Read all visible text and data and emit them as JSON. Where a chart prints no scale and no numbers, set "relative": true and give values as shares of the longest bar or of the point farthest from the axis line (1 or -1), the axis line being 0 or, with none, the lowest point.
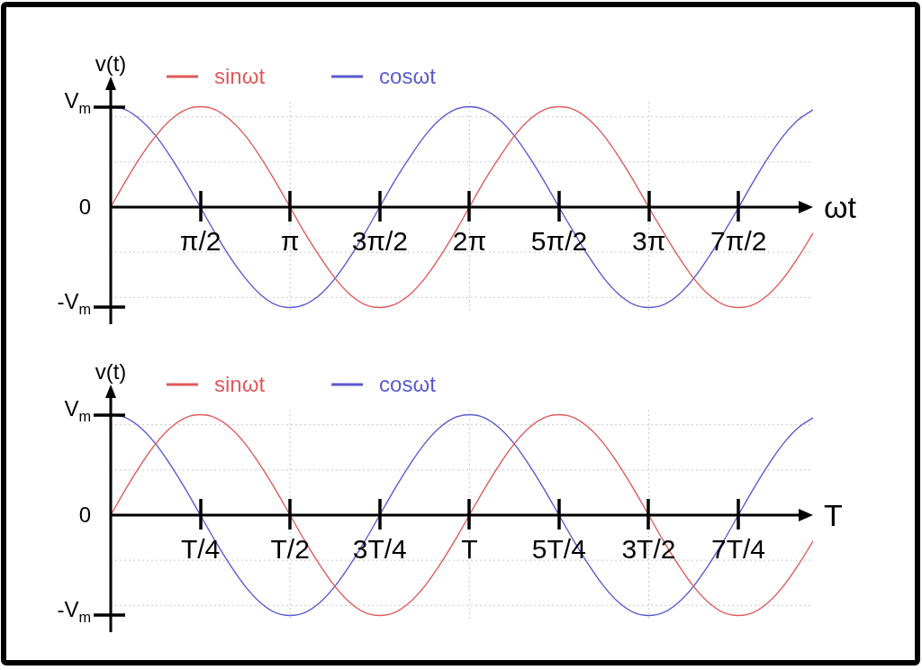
{
  "chart_data": [
    {
      "type": "line",
      "relative": true,
      "xlabel": "ωt",
      "ylabel": "v(t)",
      "legend": "top left",
      "x": [
        0,
        0.26,
        0.52,
        0.79,
        1.05,
        1.31,
        1.57,
        1.83,
        2.09,
        2.36,
        2.62,
        2.88,
        3.14,
        3.4,
        3.67,
        3.93,
        4.19,
        4.45,
        4.71,
        4.97,
        5.24,
        5.5,
        5.76,
        6.02,
        6.28,
        6.54,
        6.81,
        7.07,
        7.33,
        7.59,
        7.85,
        8.12,
        8.38,
        8.64,
        8.9,
        9.16,
        9.42,
        9.69,
        9.95,
        10.21,
        10.47,
        10.73,
        11,
        11.26,
        11.52,
        11.78,
        12.04,
        12.3
      ],
      "series": [
        {
          "name": "sinωt",
          "color": "#e05a5a",
          "values": [
            0,
            0.26,
            0.5,
            0.71,
            0.87,
            0.97,
            1,
            0.97,
            0.87,
            0.71,
            0.5,
            0.26,
            0,
            -0.26,
            -0.5,
            -0.71,
            -0.87,
            -0.97,
            -1,
            -0.97,
            -0.87,
            -0.71,
            -0.5,
            -0.26,
            0,
            0.26,
            0.5,
            0.71,
            0.87,
            0.97,
            1,
            0.97,
            0.87,
            0.71,
            0.5,
            0.26,
            0,
            -0.26,
            -0.5,
            -0.71,
            -0.87,
            -0.97,
            -1,
            -0.97,
            -0.87,
            -0.71,
            -0.5,
            -0.26
          ]
        },
        {
          "name": "cosωt",
          "color": "#5a5ad0",
          "values": [
            1,
            0.97,
            0.87,
            0.71,
            0.5,
            0.26,
            0,
            -0.26,
            -0.5,
            -0.71,
            -0.87,
            -0.97,
            -1,
            -0.97,
            -0.87,
            -0.71,
            -0.5,
            -0.26,
            0,
            0.26,
            0.5,
            0.71,
            0.87,
            0.97,
            1,
            0.97,
            0.87,
            0.71,
            0.5,
            0.26,
            0,
            -0.26,
            -0.5,
            -0.71,
            -0.87,
            -0.97,
            -1,
            -0.97,
            -0.87,
            -0.71,
            -0.5,
            -0.26,
            0,
            0.26,
            0.5,
            0.71,
            0.87,
            0.97
          ]
        }
      ],
      "xlim": [
        0,
        12.3
      ],
      "xticks": [
        {
          "value": 1.5708,
          "label": "π/2"
        },
        {
          "value": 3.1416,
          "label": "π"
        },
        {
          "value": 4.7124,
          "label": "3π/2"
        },
        {
          "value": 6.2832,
          "label": "2π"
        },
        {
          "value": 7.854,
          "label": "5π/2"
        },
        {
          "value": 9.4248,
          "label": "3π"
        },
        {
          "value": 10.9956,
          "label": "7π/2"
        }
      ],
      "annotations": [
        "V$_{m}$",
        "0",
        "-V$_{m}$"
      ],
      "ref_lines": [
        {
          "axis": "x",
          "value": 3.1416,
          "color": "#c8c8c8",
          "line_style": "dotted"
        },
        {
          "axis": "x",
          "value": 6.2832,
          "color": "#c8c8c8",
          "line_style": "dotted"
        },
        {
          "axis": "x",
          "value": 9.4248,
          "color": "#c8c8c8",
          "line_style": "dotted"
        },
        {
          "axis": "y",
          "value": 0.9,
          "color": "#c8c8c8",
          "line_style": "dotted"
        },
        {
          "axis": "y",
          "value": 0.45,
          "color": "#c8c8c8",
          "line_style": "dotted"
        },
        {
          "axis": "y",
          "value": -0.45,
          "color": "#c8c8c8",
          "line_style": "dotted"
        },
        {
          "axis": "y",
          "value": -0.9,
          "color": "#c8c8c8",
          "line_style": "dotted"
        }
      ]
    },
    {
      "type": "line",
      "relative": true,
      "xlabel": "T",
      "ylabel": "v(t)",
      "legend": "top left",
      "categories": [
        null,
        null,
        null,
        null,
        null,
        null,
        "T/4",
        null,
        null,
        null,
        null,
        null,
        "T/2",
        null,
        null,
        null,
        null,
        null,
        "3T/4",
        null,
        null,
        null,
        null,
        null,
        "T",
        null,
        null,
        null,
        null,
        null,
        "5T/4",
        null,
        null,
        null,
        null,
        null,
        "3T/2",
        null,
        null,
        null,
        null,
        null,
        "7T/4",
        null,
        null,
        null,
        null,
        null
      ],
      "series": [
        {
          "name": "sinωt",
          "color": "#e05a5a",
          "values": [
            0,
            0.26,
            0.5,
            0.71,
            0.87,
            0.97,
            1,
            0.97,
            0.87,
            0.71,
            0.5,
            0.26,
            0,
            -0.26,
            -0.5,
            -0.71,
            -0.87,
            -0.97,
            -1,
            -0.97,
            -0.87,
            -0.71,
            -0.5,
            -0.26,
            0,
            0.26,
            0.5,
            0.71,
            0.87,
            0.97,
            1,
            0.97,
            0.87,
            0.71,
            0.5,
            0.26,
            0,
            -0.26,
            -0.5,
            -0.71,
            -0.87,
            -0.97,
            -1,
            -0.97,
            -0.87,
            -0.71,
            -0.5,
            -0.26
          ]
        },
        {
          "name": "cosωt",
          "color": "#5a5ad0",
          "values": [
            1,
            0.97,
            0.87,
            0.71,
            0.5,
            0.26,
            0,
            -0.26,
            -0.5,
            -0.71,
            -0.87,
            -0.97,
            -1,
            -0.97,
            -0.87,
            -0.71,
            -0.5,
            -0.26,
            0,
            0.26,
            0.5,
            0.71,
            0.87,
            0.97,
            1,
            0.97,
            0.87,
            0.71,
            0.5,
            0.26,
            0,
            -0.26,
            -0.5,
            -0.71,
            -0.87,
            -0.97,
            -1,
            -0.97,
            -0.87,
            -0.71,
            -0.5,
            -0.26,
            0,
            0.26,
            0.5,
            0.71,
            0.87,
            0.97
          ]
        }
      ],
      "annotations": [
        "V$_{m}$",
        "0",
        "-V$_{m}$"
      ],
      "ref_lines": [
        {
          "axis": "y",
          "value": 0.9,
          "color": "#c8c8c8",
          "line_style": "dotted"
        },
        {
          "axis": "y",
          "value": 0.45,
          "color": "#c8c8c8",
          "line_style": "dotted"
        },
        {
          "axis": "y",
          "value": -0.45,
          "color": "#c8c8c8",
          "line_style": "dotted"
        },
        {
          "axis": "y",
          "value": -0.9,
          "color": "#c8c8c8",
          "line_style": "dotted"
        }
      ]
    }
  ]
}
